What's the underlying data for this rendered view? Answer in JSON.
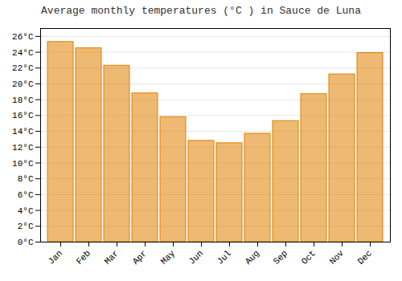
{
  "chart_data": {
    "type": "bar",
    "title": "Average monthly temperatures (°C ) in Sauce de Luna",
    "categories": [
      "Jan",
      "Feb",
      "Mar",
      "Apr",
      "May",
      "Jun",
      "Jul",
      "Aug",
      "Sep",
      "Oct",
      "Nov",
      "Dec"
    ],
    "values": [
      25.3,
      24.5,
      22.3,
      18.8,
      15.8,
      12.8,
      12.5,
      13.7,
      15.3,
      18.7,
      21.2,
      23.9
    ],
    "color": "#E08000",
    "ylim": [
      0,
      27
    ],
    "yticks": [
      {
        "value": 0,
        "label": "0°C"
      },
      {
        "value": 2,
        "label": "2°C"
      },
      {
        "value": 4,
        "label": "4°C"
      },
      {
        "value": 6,
        "label": "6°C"
      },
      {
        "value": 8,
        "label": "8°C"
      },
      {
        "value": 10,
        "label": "10°C"
      },
      {
        "value": 12,
        "label": "12°C"
      },
      {
        "value": 14,
        "label": "14°C"
      },
      {
        "value": 16,
        "label": "16°C"
      },
      {
        "value": 18,
        "label": "18°C"
      },
      {
        "value": 20,
        "label": "20°C"
      },
      {
        "value": 22,
        "label": "22°C"
      },
      {
        "value": 24,
        "label": "24°C"
      },
      {
        "value": 26,
        "label": "26°C"
      }
    ],
    "grid": true
  }
}
